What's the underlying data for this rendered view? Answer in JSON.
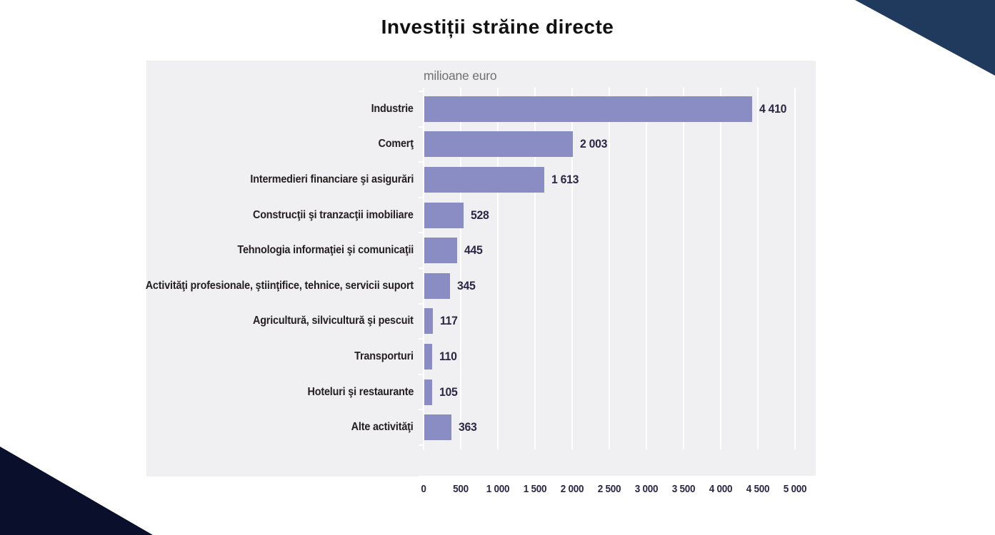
{
  "title": "Investiții străine directe",
  "chart": {
    "axis_title": "milioane euro"
  },
  "chart_data": {
    "type": "bar",
    "orientation": "horizontal",
    "title": "Investiții străine directe",
    "unit_label": "milioane euro",
    "categories": [
      "Industrie",
      "Comerţ",
      "Intermedieri financiare şi asigurări",
      "Construcţii şi tranzacţii imobiliare",
      "Tehnologia informaţiei şi comunicaţii",
      "Activităţi profesionale, ştiinţifice, tehnice, servicii suport",
      "Agricultură, silvicultură şi pescuit",
      "Transporturi",
      "Hoteluri şi restaurante",
      "Alte activităţi"
    ],
    "values": [
      4410,
      2003,
      1613,
      528,
      445,
      345,
      117,
      110,
      105,
      363
    ],
    "value_labels": [
      "4 410",
      "2 003",
      "1 613",
      "528",
      "445",
      "345",
      "117",
      "110",
      "105",
      "363"
    ],
    "x_ticks": [
      0,
      500,
      1000,
      1500,
      2000,
      2500,
      3000,
      3500,
      4000,
      4500,
      5000
    ],
    "x_tick_labels": [
      "0",
      "500",
      "1 000",
      "1 500",
      "2 000",
      "2 500",
      "3 000",
      "3 500",
      "4 000",
      "4 500",
      "5 000"
    ],
    "xlim": [
      0,
      5000
    ],
    "grid": true,
    "legend": false
  },
  "colors": {
    "bar": "#8a8dc4",
    "panel_bg": "#f0eff1",
    "gridline": "#ffffff",
    "category_text": "#231f20",
    "value_text": "#2b2745",
    "axis_title_text": "#6f6e73",
    "title_text": "#111111",
    "corner_top_right": "#1f3a5c",
    "corner_bottom_left": "#0a0f2b",
    "background": "#ffffff"
  }
}
